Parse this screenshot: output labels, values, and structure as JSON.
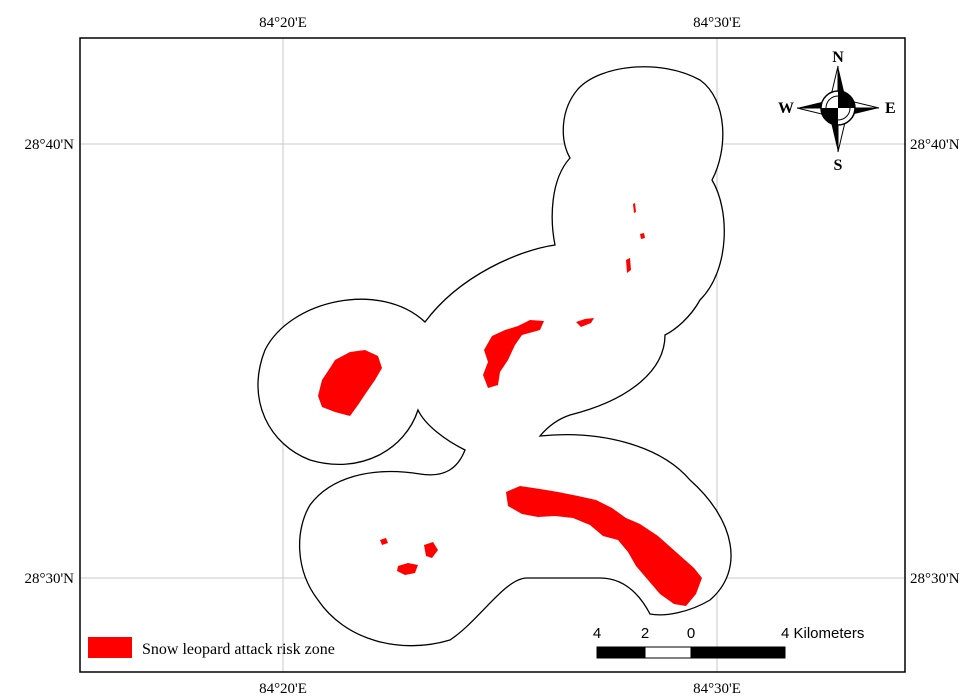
{
  "coordinates": {
    "top_left": "84°20'E",
    "top_right": "84°30'E",
    "bottom_left": "84°20'E",
    "bottom_right": "84°30'E",
    "left_top": "28°40'N",
    "left_bottom": "28°30'N",
    "right_top": "28°40'N",
    "right_bottom": "28°30'N"
  },
  "compass": {
    "north": "N",
    "south": "S",
    "east": "E",
    "west": "W"
  },
  "scale_bar": {
    "label_left": "4",
    "label_mid": "2",
    "label_zero": "0",
    "label_right": "4 Kilometers"
  },
  "legend": {
    "risk_zone_label": "Snow leopard attack risk zone",
    "risk_zone_color": "#ff0000"
  },
  "colors": {
    "grid": "#c8c8c8",
    "boundary": "#000000",
    "risk": "#ff0000"
  }
}
